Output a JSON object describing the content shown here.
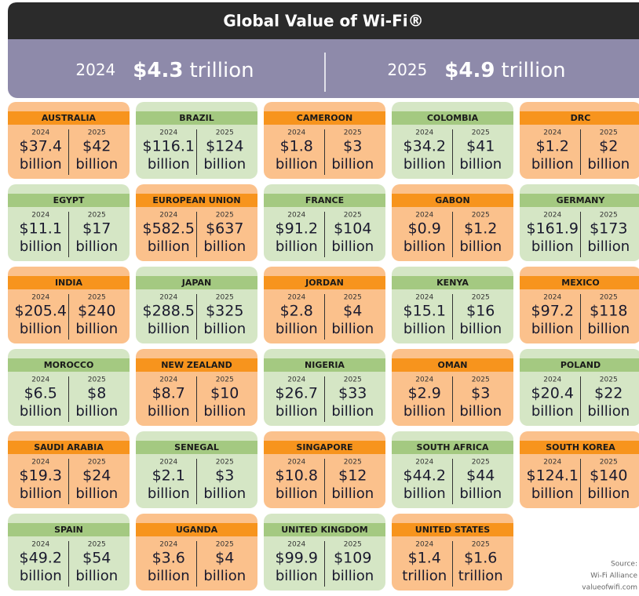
{
  "header": {
    "title": "Global Value of Wi-Fi®"
  },
  "summary": [
    {
      "year": "2024",
      "amount": "$4.3",
      "unit": "trillion"
    },
    {
      "year": "2025",
      "amount": "$4.9",
      "unit": "trillion"
    }
  ],
  "countries": [
    {
      "name": "AUSTRALIA",
      "v": [
        [
          "2024",
          "$37.4",
          "billion"
        ],
        [
          "2025",
          "$42",
          "billion"
        ]
      ]
    },
    {
      "name": "BRAZIL",
      "v": [
        [
          "2024",
          "$116.1",
          "billion"
        ],
        [
          "2025",
          "$124",
          "billion"
        ]
      ]
    },
    {
      "name": "CAMEROON",
      "v": [
        [
          "2024",
          "$1.8",
          "billion"
        ],
        [
          "2025",
          "$3",
          "billion"
        ]
      ]
    },
    {
      "name": "COLOMBIA",
      "v": [
        [
          "2024",
          "$34.2",
          "billion"
        ],
        [
          "2025",
          "$41",
          "billion"
        ]
      ]
    },
    {
      "name": "DRC",
      "v": [
        [
          "2024",
          "$1.2",
          "billion"
        ],
        [
          "2025",
          "$2",
          "billion"
        ]
      ]
    },
    {
      "name": "EGYPT",
      "v": [
        [
          "2024",
          "$11.1",
          "billion"
        ],
        [
          "2025",
          "$17",
          "billion"
        ]
      ]
    },
    {
      "name": "EUROPEAN UNION",
      "v": [
        [
          "2024",
          "$582.5",
          "billion"
        ],
        [
          "2025",
          "$637",
          "billion"
        ]
      ]
    },
    {
      "name": "FRANCE",
      "v": [
        [
          "2024",
          "$91.2",
          "billion"
        ],
        [
          "2025",
          "$104",
          "billion"
        ]
      ]
    },
    {
      "name": "GABON",
      "v": [
        [
          "2024",
          "$0.9",
          "billion"
        ],
        [
          "2025",
          "$1.2",
          "billion"
        ]
      ]
    },
    {
      "name": "GERMANY",
      "v": [
        [
          "2024",
          "$161.9",
          "billion"
        ],
        [
          "2025",
          "$173",
          "billion"
        ]
      ]
    },
    {
      "name": "INDIA",
      "v": [
        [
          "2024",
          "$205.4",
          "billion"
        ],
        [
          "2025",
          "$240",
          "billion"
        ]
      ]
    },
    {
      "name": "JAPAN",
      "v": [
        [
          "2024",
          "$288.5",
          "billion"
        ],
        [
          "2025",
          "$325",
          "billion"
        ]
      ]
    },
    {
      "name": "JORDAN",
      "v": [
        [
          "2024",
          "$2.8",
          "billion"
        ],
        [
          "2025",
          "$4",
          "billion"
        ]
      ]
    },
    {
      "name": "KENYA",
      "v": [
        [
          "2024",
          "$15.1",
          "billion"
        ],
        [
          "2025",
          "$16",
          "billion"
        ]
      ]
    },
    {
      "name": "MEXICO",
      "v": [
        [
          "2024",
          "$97.2",
          "billion"
        ],
        [
          "2025",
          "$118",
          "billion"
        ]
      ]
    },
    {
      "name": "MOROCCO",
      "v": [
        [
          "2024",
          "$6.5",
          "billion"
        ],
        [
          "2025",
          "$8",
          "billion"
        ]
      ]
    },
    {
      "name": "NEW ZEALAND",
      "v": [
        [
          "2024",
          "$8.7",
          "billion"
        ],
        [
          "2025",
          "$10",
          "billion"
        ]
      ]
    },
    {
      "name": "NIGERIA",
      "v": [
        [
          "2024",
          "$26.7",
          "billion"
        ],
        [
          "2025",
          "$33",
          "billion"
        ]
      ]
    },
    {
      "name": "OMAN",
      "v": [
        [
          "2024",
          "$2.9",
          "billion"
        ],
        [
          "2025",
          "$3",
          "billion"
        ]
      ]
    },
    {
      "name": "POLAND",
      "v": [
        [
          "2024",
          "$20.4",
          "billion"
        ],
        [
          "2025",
          "$22",
          "billion"
        ]
      ]
    },
    {
      "name": "SAUDI ARABIA",
      "v": [
        [
          "2024",
          "$19.3",
          "billion"
        ],
        [
          "2025",
          "$24",
          "billion"
        ]
      ]
    },
    {
      "name": "SENEGAL",
      "v": [
        [
          "2024",
          "$2.1",
          "billion"
        ],
        [
          "2025",
          "$3",
          "billion"
        ]
      ]
    },
    {
      "name": "SINGAPORE",
      "v": [
        [
          "2024",
          "$10.8",
          "billion"
        ],
        [
          "2025",
          "$12",
          "billion"
        ]
      ]
    },
    {
      "name": "SOUTH AFRICA",
      "v": [
        [
          "2024",
          "$44.2",
          "billion"
        ],
        [
          "2025",
          "$44",
          "billion"
        ]
      ]
    },
    {
      "name": "SOUTH KOREA",
      "v": [
        [
          "2024",
          "$124.1",
          "billion"
        ],
        [
          "2025",
          "$140",
          "billion"
        ]
      ]
    },
    {
      "name": "SPAIN",
      "v": [
        [
          "2024",
          "$49.2",
          "billion"
        ],
        [
          "2025",
          "$54",
          "billion"
        ]
      ]
    },
    {
      "name": "UGANDA",
      "v": [
        [
          "2024",
          "$3.6",
          "billion"
        ],
        [
          "2025",
          "$4",
          "billion"
        ]
      ]
    },
    {
      "name": "UNITED KINGDOM",
      "v": [
        [
          "2024",
          "$99.9",
          "billion"
        ],
        [
          "2025",
          "$109",
          "billion"
        ]
      ]
    },
    {
      "name": "UNITED STATES",
      "v": [
        [
          "2024",
          "$1.4",
          "trillion"
        ],
        [
          "2025",
          "$1.6",
          "trillion"
        ]
      ]
    }
  ],
  "source": [
    "Source:",
    "Wi-Fi Alliance",
    "valueofwifi.com"
  ]
}
